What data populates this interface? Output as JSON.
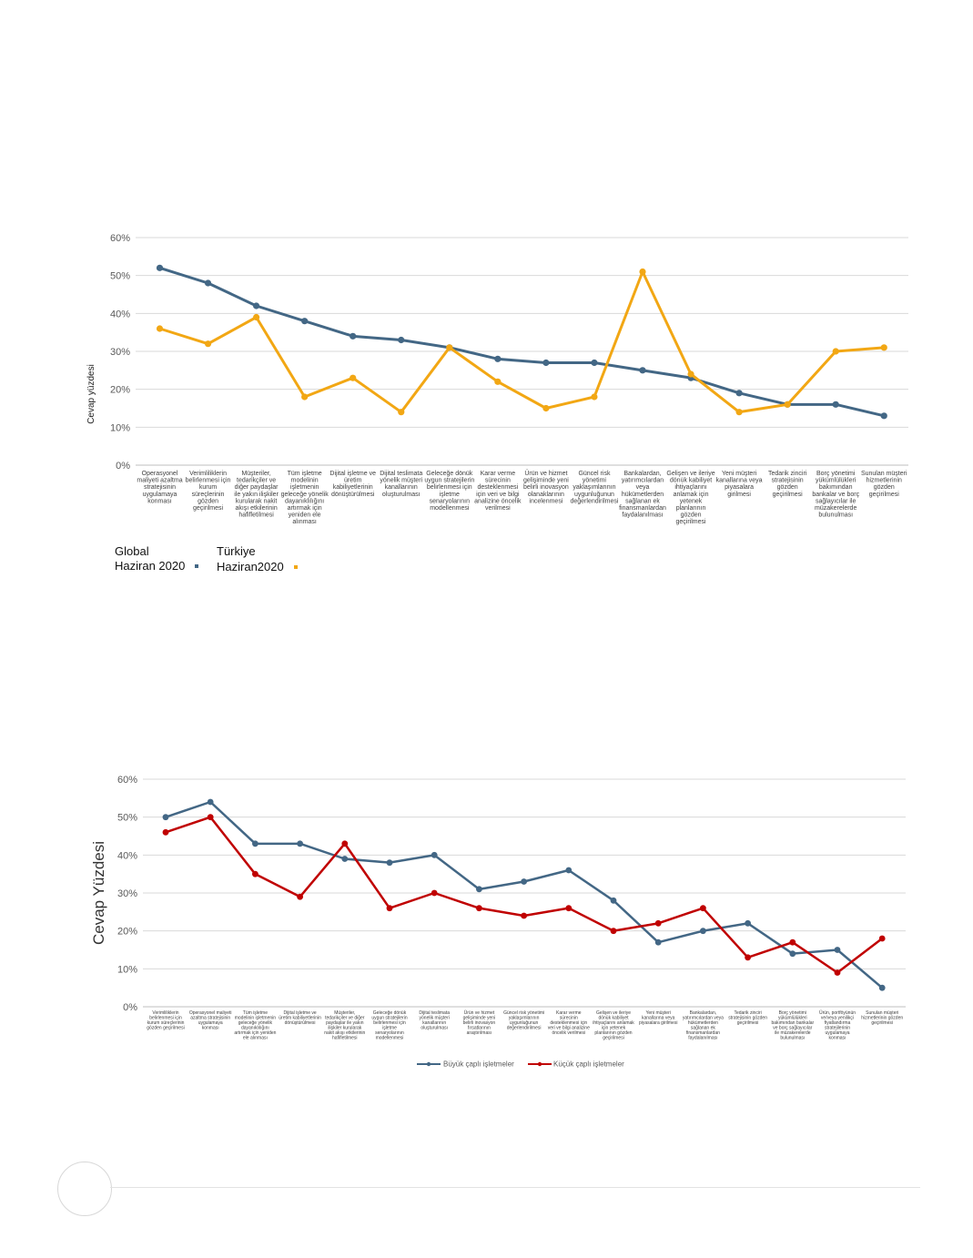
{
  "chart_data": [
    {
      "type": "line",
      "ylabel": "Cevap yüzdesi",
      "ylim": [
        0,
        60
      ],
      "yticks": [
        "0%",
        "10%",
        "20%",
        "30%",
        "40%",
        "50%",
        "60%"
      ],
      "categories": [
        [
          "Operasyonel",
          "maliyeti azaltma",
          "stratejisinin",
          "uygulamaya",
          "konması"
        ],
        [
          "Verimliliklerin",
          "belirlenmesi için",
          "kurum",
          "süreçlerinin",
          "gözden",
          "geçirilmesi"
        ],
        [
          "Müşteriler,",
          "tedarikçiler ve",
          "diğer paydaşlar",
          "ile yakın ilişkiler",
          "kurularak nakit",
          "akışı etkilerinin",
          "hafifletilmesi"
        ],
        [
          "Tüm işletme",
          "modelinin",
          "işletmenin",
          "geleceğe yönelik",
          "dayanıklılığını",
          "artırmak için",
          "yeniden ele",
          "alınması"
        ],
        [
          "Dijital işletme ve",
          "üretim",
          "kabiliyetlerinin",
          "dönüştürülmesi"
        ],
        [
          "Dijital teslimata",
          "yönelik müşteri",
          "kanallarının",
          "oluşturulması"
        ],
        [
          "Geleceğe dönük",
          "uygun stratejilerin",
          "belirlenmesi için",
          "işletme",
          "senaryolarının",
          "modellenmesi"
        ],
        [
          "Karar verme",
          "sürecinin",
          "desteklenmesi",
          "için veri ve bilgi",
          "analizine öncelik",
          "verilmesi"
        ],
        [
          "Ürün ve hizmet",
          "gelişiminde yeni",
          "belirli inovasyon",
          "olanaklarının",
          "incelenmesi"
        ],
        [
          "Güncel risk",
          "yönetimi",
          "yaklaşımlarının",
          "uygunluğunun",
          "değerlendirilmesi"
        ],
        [
          "Bankalardan,",
          "yatırımcılardan",
          "veya",
          "hükümetlerden",
          "sağlanan ek",
          "finansmanlardan",
          "faydalanılması"
        ],
        [
          "Gelişen ve ileriye",
          "dönük kabiliyet",
          "ihtiyaçlarını",
          "anlamak için",
          "yetenek",
          "planlarının",
          "gözden",
          "geçirilmesi"
        ],
        [
          "Yeni müşteri",
          "kanallarına veya",
          "piyasalara",
          "girilmesi"
        ],
        [
          "Tedarik zinciri",
          "stratejisinin",
          "gözden",
          "geçirilmesi"
        ],
        [
          "Borç yönetimi",
          "yükümlülükleri",
          "bakımından",
          "bankalar ve borç",
          "sağlayıcılar ile",
          "müzakerelerde",
          "bulunulması"
        ],
        [
          "Sunulan müşteri",
          "hizmetlerinin",
          "gözden",
          "geçirilmesi"
        ]
      ],
      "series": [
        {
          "name": "Global Haziran 2020",
          "legend_lines": [
            "Global",
            "Haziran 2020"
          ],
          "color": "#436785",
          "values": [
            52,
            48,
            42,
            38,
            34,
            33,
            31,
            28,
            27,
            27,
            25,
            23,
            19,
            16,
            16,
            13
          ]
        },
        {
          "name": "Türkiye Haziran2020",
          "legend_lines": [
            "Türkiye",
            "Haziran2020"
          ],
          "color": "#F2A714",
          "values": [
            36,
            32,
            39,
            18,
            23,
            14,
            31,
            22,
            15,
            18,
            51,
            24,
            14,
            16,
            30,
            31
          ]
        }
      ]
    },
    {
      "type": "line",
      "ylabel": "Cevap Yüzdesi",
      "ylim": [
        0,
        60
      ],
      "yticks": [
        "0%",
        "10%",
        "20%",
        "30%",
        "40%",
        "50%",
        "60%"
      ],
      "categories": [
        [
          "Verimliliklerin",
          "belirlenmesi için",
          "kurum süreçlerinin",
          "gözden geçirilmesi"
        ],
        [
          "Operasyonel maliyeti",
          "azaltma stratejisinin",
          "uygulamaya",
          "konması"
        ],
        [
          "Tüm işletme",
          "modelinin işletmenin",
          "geleceğe yönelik",
          "dayanıklılığını",
          "artırmak için yeniden",
          "ele alınması"
        ],
        [
          "Dijital işletme ve",
          "üretim kabiliyetlerinin",
          "dönüştürülmesi"
        ],
        [
          "Müşteriler,",
          "tedarikçiler ve diğer",
          "paydaşlar ile yakın",
          "ilişkiler kurularak",
          "nakit akışı etkilerinin",
          "hafifletilmesi"
        ],
        [
          "Geleceğe dönük",
          "uygun stratejilerin",
          "belirlenmesi için",
          "işletme",
          "senaryolarının",
          "modellenmesi"
        ],
        [
          "Dijital teslimata",
          "yönelik müşteri",
          "kanallarının",
          "oluşturulması"
        ],
        [
          "Ürün ve hizmet",
          "gelişiminde yeni",
          "belirli inovasyon",
          "fırsatlarının",
          "araştırılması"
        ],
        [
          "Güncel risk yönetimi",
          "yaklaşımlarının",
          "uygunluğunun",
          "değerlendirilmesi"
        ],
        [
          "Karar verme",
          "sürecinin",
          "desteklenmesi için",
          "veri ve bilgi analizine",
          "öncelik verilmesi"
        ],
        [
          "Gelişen ve ileriye",
          "dönük kabiliyet",
          "ihtiyaçlarını anlamak",
          "için yetenek",
          "planlarının gözden",
          "geçirilmesi"
        ],
        [
          "Yeni müşteri",
          "kanallarına veya",
          "piyasalara girilmesi"
        ],
        [
          "Bankalardan,",
          "yatırımcılardan veya",
          "hükümetlerden",
          "sağlanan ek",
          "finansmanlardan",
          "faydalanılması"
        ],
        [
          "Tedarik zinciri",
          "stratejisinin gözden",
          "geçirilmesi"
        ],
        [
          "Borç yönetimi",
          "yükümlülükleri",
          "bakımından bankalar",
          "ve borç sağlayıcılar",
          "ile müzakerelerde",
          "bulunulması"
        ],
        [
          "Ürün, portföyünün",
          "ve/veya yenilikçi",
          "fiyatlandırma",
          "stratejilerinin",
          "uygulamaya",
          "konması"
        ],
        [
          "Sunulan müşteri",
          "hizmetlerinin gözden",
          "geçirilmesi"
        ]
      ],
      "series": [
        {
          "name": "Büyük çaplı işletmeler",
          "color": "#436785",
          "values": [
            50,
            54,
            43,
            43,
            39,
            38,
            40,
            31,
            33,
            36,
            28,
            17,
            20,
            22,
            14,
            15,
            5
          ]
        },
        {
          "name": "Küçük çaplı işletmeler",
          "color": "#C00000",
          "values": [
            46,
            50,
            35,
            29,
            43,
            26,
            30,
            26,
            24,
            26,
            20,
            22,
            26,
            13,
            17,
            9,
            18
          ]
        }
      ]
    }
  ]
}
